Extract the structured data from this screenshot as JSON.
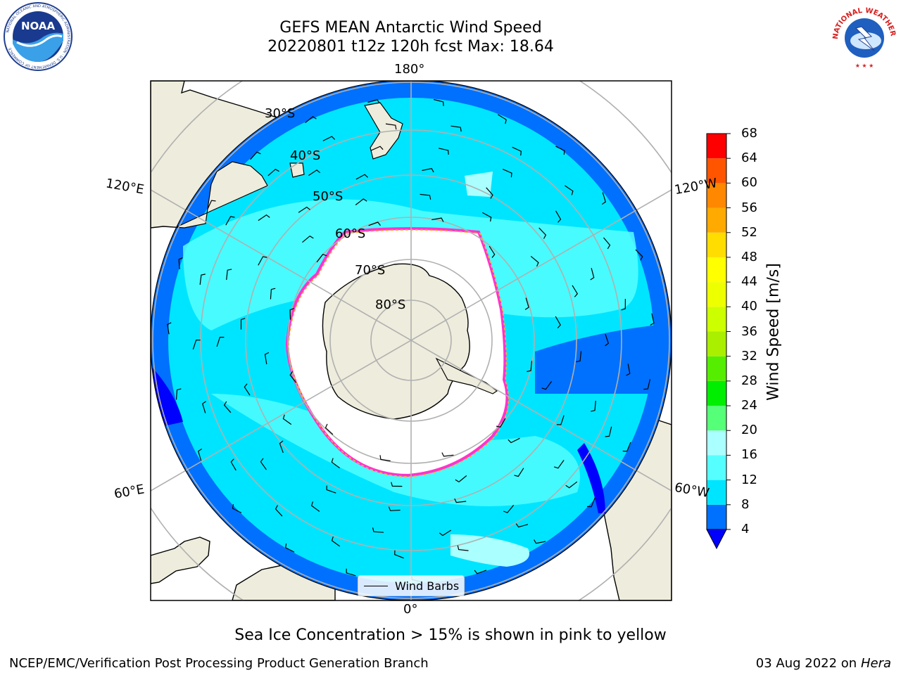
{
  "header": {
    "title": "GEFS MEAN Antarctic Wind Speed",
    "subtitle": "20220801 t12z 120h fcst   Max: 18.64"
  },
  "logos": {
    "noaa": {
      "text": "NOAA",
      "ring_text": "NATIONAL OCEANIC AND ATMOSPHERIC ADMINISTRATION · U.S. DEPARTMENT OF COMMERCE"
    },
    "nws": {
      "ring_text": "NATIONAL WEATHER SERVICE"
    }
  },
  "map": {
    "projection": "south-polar-stereographic",
    "longitude_labels": {
      "top": "180°",
      "bottom": "0°",
      "left_upper": "120°E",
      "left_lower": "60°E",
      "right_upper": "120°W",
      "right_lower": "60°W"
    },
    "latitude_labels": [
      "30°S",
      "40°S",
      "50°S",
      "60°S",
      "70°S",
      "80°S"
    ],
    "legend_label": "Wind Barbs",
    "colors": {
      "land": "#eeecdc",
      "coast": "#000000",
      "grid": "#b0b0b0",
      "sea_ice_edge": [
        "#ff33cc",
        "#ffaa33",
        "#ffff00"
      ]
    }
  },
  "colorbar": {
    "label": "Wind Speed [m/s]",
    "ticks": [
      "4",
      "8",
      "12",
      "16",
      "20",
      "24",
      "28",
      "32",
      "36",
      "40",
      "44",
      "48",
      "52",
      "56",
      "60",
      "64",
      "68"
    ],
    "under_color": "#0000ff",
    "colors": [
      "#0070ff",
      "#00e5ff",
      "#55ffff",
      "#aaffff",
      "#55ff77",
      "#00ee00",
      "#55ee00",
      "#aaee00",
      "#ccff00",
      "#eeff00",
      "#ffff00",
      "#ffdd00",
      "#ffaa00",
      "#ff8800",
      "#ff5500",
      "#ff0000"
    ]
  },
  "note": "Sea Ice Concentration > 15% is shown in pink to yellow",
  "footer": {
    "left": "NCEP/EMC/Verification Post Processing Product Generation Branch",
    "right_date": "03 Aug 2022 on",
    "right_host": "Hera"
  }
}
